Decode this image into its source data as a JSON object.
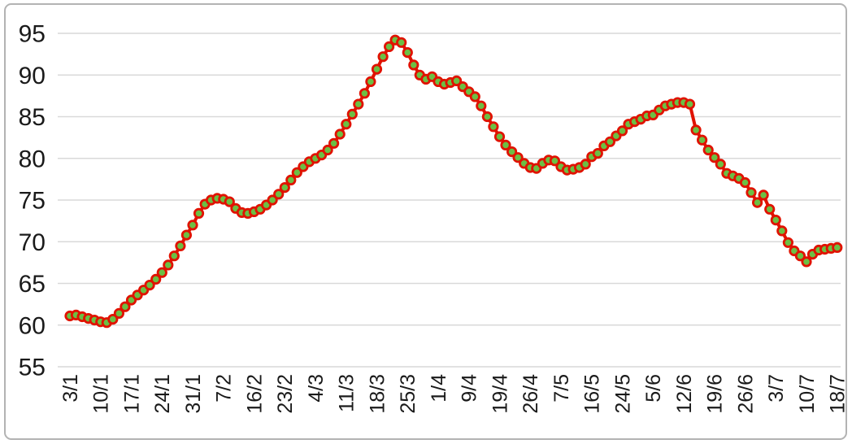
{
  "chart_data": {
    "type": "line",
    "title": "",
    "xlabel": "",
    "ylabel": "",
    "legend": "none",
    "grid": "horizontal",
    "ylim": [
      55,
      95
    ],
    "y_ticks": [
      55,
      60,
      65,
      70,
      75,
      80,
      85,
      90,
      95
    ],
    "categories": [
      "3/1",
      "10/1",
      "17/1",
      "24/1",
      "31/1",
      "7/2",
      "16/2",
      "23/2",
      "4/3",
      "11/3",
      "18/3",
      "25/3",
      "1/4",
      "9/4",
      "19/4",
      "26/4",
      "7/5",
      "16/5",
      "24/5",
      "5/6",
      "12/6",
      "19/6",
      "26/6",
      "3/7",
      "10/7",
      "18/7"
    ],
    "points_per_label": 5,
    "values": [
      61.1,
      61.2,
      61.0,
      60.8,
      60.6,
      60.4,
      60.3,
      60.7,
      61.4,
      62.2,
      63.0,
      63.6,
      64.2,
      64.8,
      65.5,
      66.3,
      67.2,
      68.3,
      69.5,
      70.8,
      72.0,
      73.4,
      74.5,
      75.0,
      75.2,
      75.1,
      74.8,
      74.0,
      73.5,
      73.4,
      73.6,
      73.9,
      74.4,
      75.0,
      75.7,
      76.5,
      77.4,
      78.3,
      79.0,
      79.6,
      80.0,
      80.4,
      81.0,
      81.8,
      82.9,
      84.1,
      85.3,
      86.5,
      87.8,
      89.2,
      90.7,
      92.2,
      93.4,
      94.2,
      93.9,
      92.7,
      91.2,
      90.0,
      89.5,
      89.8,
      89.2,
      88.9,
      89.1,
      89.3,
      88.6,
      88.0,
      87.4,
      86.3,
      85.0,
      83.8,
      82.6,
      81.6,
      80.8,
      80.1,
      79.4,
      78.9,
      78.8,
      79.4,
      79.8,
      79.7,
      79.0,
      78.6,
      78.7,
      78.9,
      79.3,
      80.2,
      80.6,
      81.5,
      82.0,
      82.7,
      83.3,
      84.1,
      84.4,
      84.7,
      85.1,
      85.2,
      85.8,
      86.3,
      86.5,
      86.7,
      86.7,
      86.5,
      83.4,
      82.2,
      81.0,
      80.1,
      79.3,
      78.2,
      77.9,
      77.6,
      77.1,
      75.9,
      74.7,
      75.6,
      73.9,
      72.6,
      71.3,
      69.9,
      68.9,
      68.3,
      67.6,
      68.5,
      69.0,
      69.1,
      69.2,
      69.3
    ],
    "colors": {
      "line": "#e01200",
      "marker_fill": "#6cbf44",
      "marker_stroke": "#e01200",
      "grid": "#d9d9d9",
      "text": "#1a1a1a",
      "frame": "#b3b3b3",
      "background": "#ffffff"
    }
  }
}
